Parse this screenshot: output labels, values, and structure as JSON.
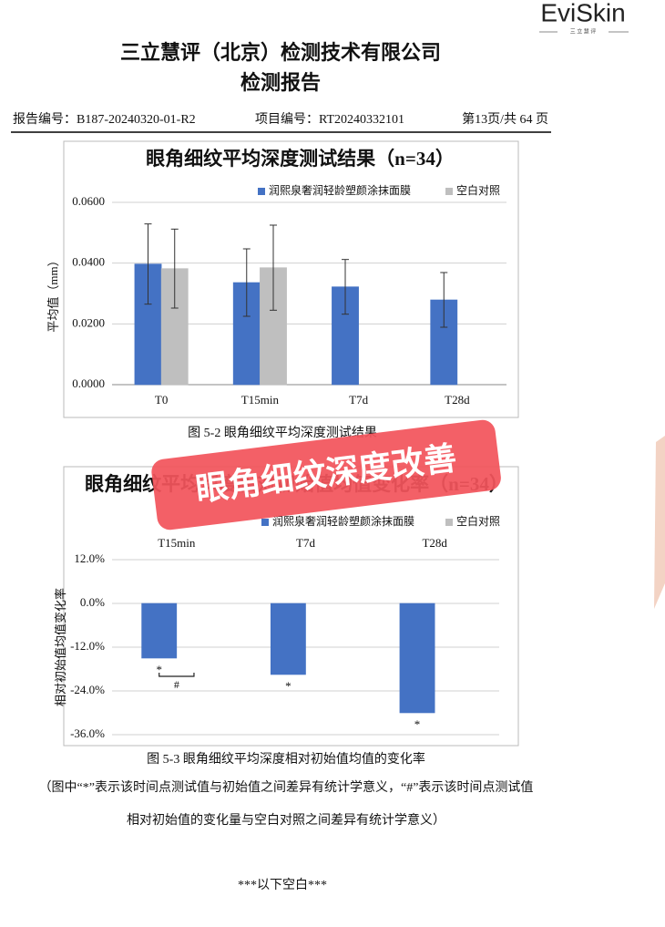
{
  "logo": {
    "brand": "EviSkin",
    "sub": "三 立 慧 评"
  },
  "header": {
    "company": "三立慧评（北京）检测技术有限公司",
    "title": "检测报告",
    "report_no": "报告编号：B187-20240320-01-R2",
    "project_no": "项目编号：RT20240332101",
    "page": "第13页/共 64 页"
  },
  "chart_data": [
    {
      "type": "bar",
      "title": "眼角细纹平均深度测试结果（n=34）",
      "ylabel": "平均值（mm）",
      "categories": [
        "T0",
        "T15min",
        "T7d",
        "T28d"
      ],
      "series": [
        {
          "name": "润熙泉奢润轻龄塑颜涂抹面膜",
          "color": "#4472c4",
          "values": [
            0.0397,
            0.0336,
            0.0322,
            0.0279
          ],
          "errors": [
            0.0132,
            0.0111,
            0.009,
            0.009
          ]
        },
        {
          "name": "空白对照",
          "color": "#bfbfbf",
          "values": [
            0.0382,
            0.0385,
            null,
            null
          ],
          "errors": [
            0.013,
            0.014,
            null,
            null
          ]
        }
      ],
      "ylim": [
        0,
        0.06
      ],
      "yticks": [
        {
          "value": 0,
          "label": "0.0000"
        },
        {
          "value": 0.02,
          "label": "0.0200"
        },
        {
          "value": 0.04,
          "label": "0.0400"
        },
        {
          "value": 0.06,
          "label": "0.0600"
        }
      ],
      "grid": true,
      "legend": "top-right",
      "xaxis_position": "bottom"
    },
    {
      "type": "bar",
      "title": "眼角细纹平均深度相对初始值均值变化率（n=34）",
      "ylabel": "相对初始值均值变化率",
      "categories": [
        "T15min",
        "T7d",
        "T28d"
      ],
      "series": [
        {
          "name": "润熙泉奢润轻龄塑颜涂抹面膜",
          "color": "#4472c4",
          "values": [
            -15.0,
            -19.5,
            -30.0
          ]
        },
        {
          "name": "空白对照",
          "color": "#bfbfbf",
          "values": [
            0,
            null,
            null
          ]
        }
      ],
      "ylim": [
        -36,
        12
      ],
      "yticks": [
        {
          "value": 12,
          "label": "12.0%"
        },
        {
          "value": 0,
          "label": "0.0%"
        },
        {
          "value": -12,
          "label": "-12.0%"
        },
        {
          "value": -24,
          "label": "-24.0%"
        },
        {
          "value": -36,
          "label": "-36.0%"
        }
      ],
      "grid": true,
      "legend": "top-right",
      "xaxis_position": "top",
      "significance": [
        "*",
        "*",
        "*"
      ],
      "group_significance": [
        "#",
        null,
        null
      ]
    }
  ],
  "captions": [
    "图 5-2  眼角细纹平均深度测试结果",
    "图 5-3  眼角细纹平均深度相对初始值均值的变化率"
  ],
  "note": [
    "（图中“*”表示该时间点测试值与初始值之间差异有统计学意义，“#”表示该时间点测试值",
    "相对初始值的变化量与空白对照之间差异有统计学意义）"
  ],
  "footer": "***以下空白***",
  "overlay_label": "眼角细纹深度改善"
}
